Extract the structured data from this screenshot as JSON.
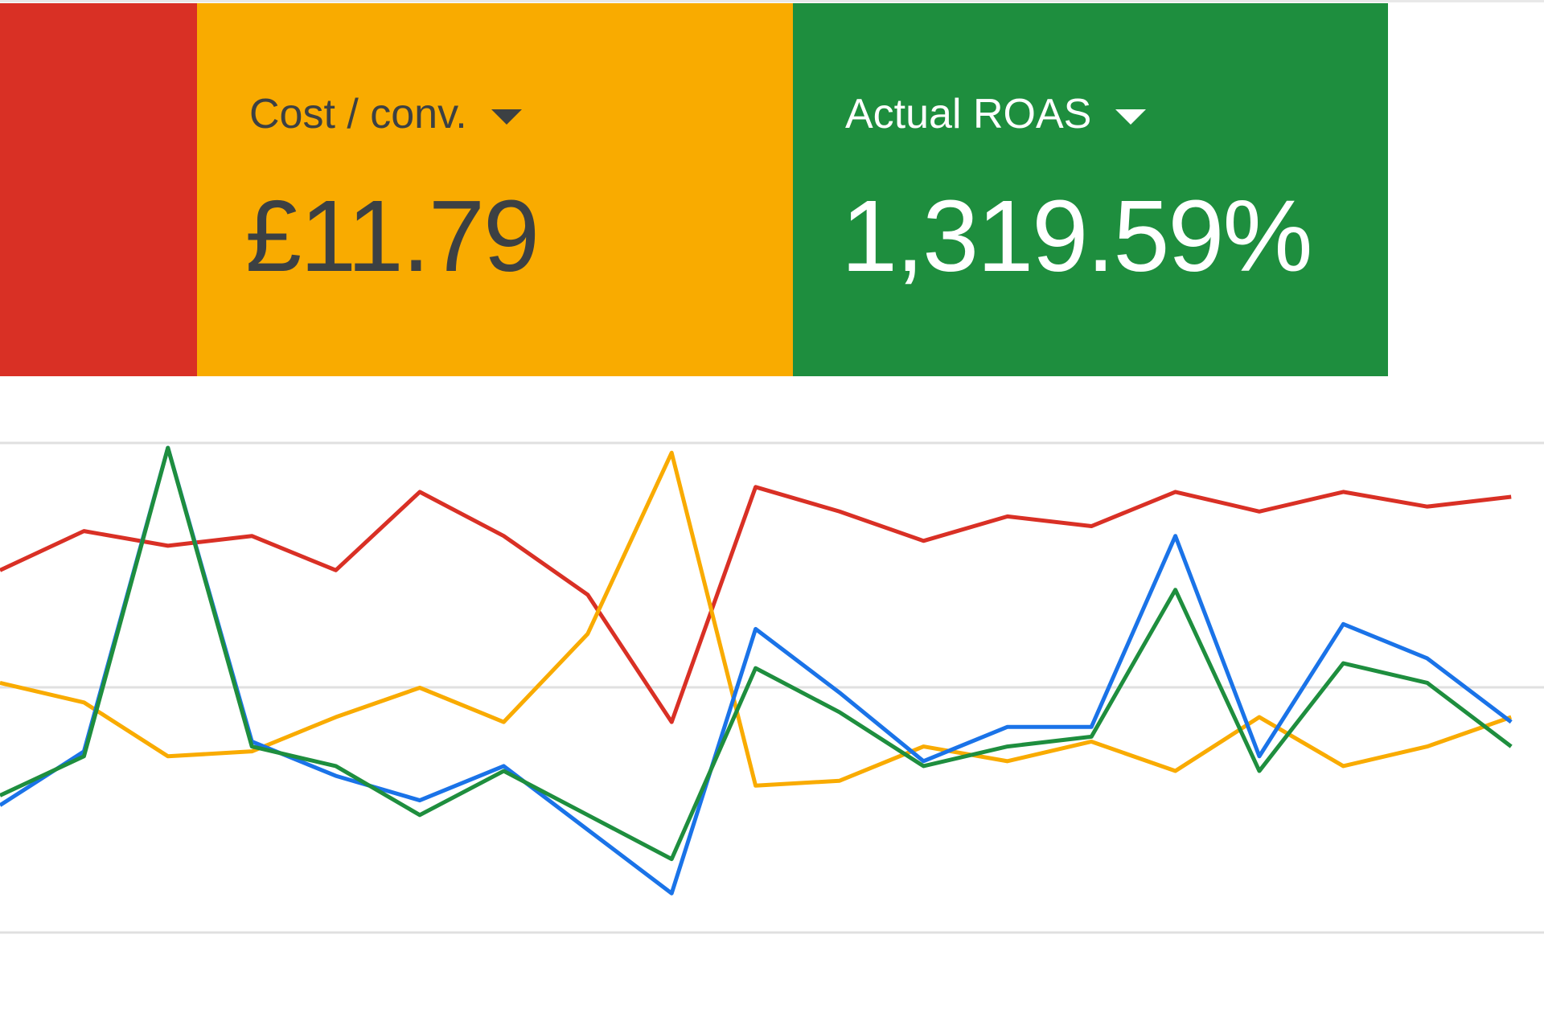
{
  "cards": [
    {
      "label": "Cost / conv.",
      "value": "£11.79"
    },
    {
      "label": "Actual ROAS",
      "value": "1,319.59%"
    }
  ],
  "chart_data": {
    "type": "line",
    "categories": [
      null,
      null,
      null,
      null,
      null,
      null,
      null,
      null,
      null,
      null,
      null,
      null,
      null,
      null,
      null,
      null,
      null,
      null,
      null
    ],
    "ylim": [
      0,
      100
    ],
    "series": [
      {
        "color": "#d93025",
        "values": [
          74,
          82,
          79,
          81,
          74,
          90,
          81,
          69,
          43,
          91,
          86,
          80,
          85,
          83,
          90,
          86,
          90,
          87,
          89
        ]
      },
      {
        "color": "#f9ab00",
        "values": [
          51,
          47,
          36,
          37,
          44,
          50,
          43,
          61,
          98,
          30,
          31,
          38,
          35,
          39,
          33,
          44,
          34,
          38,
          44
        ]
      },
      {
        "color": "#1a73e8",
        "values": [
          26,
          37,
          99,
          39,
          32,
          27,
          34,
          21,
          8,
          62,
          49,
          35,
          42,
          42,
          81,
          36,
          63,
          56,
          43
        ]
      },
      {
        "color": "#1e8e3e",
        "values": [
          28,
          36,
          99,
          38,
          34,
          24,
          33,
          24,
          15,
          54,
          45,
          34,
          38,
          40,
          70,
          33,
          55,
          51,
          38
        ]
      }
    ]
  }
}
